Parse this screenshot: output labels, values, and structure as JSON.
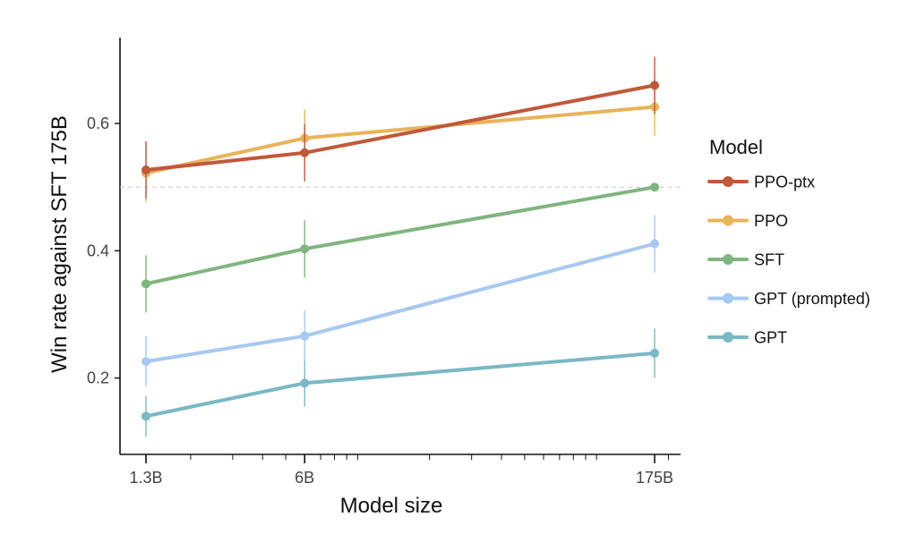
{
  "chart_data": {
    "type": "line",
    "title": "",
    "xlabel": "Model size",
    "ylabel": "Win rate against SFT 175B",
    "x_scale": "log",
    "x_param_billions": [
      1.3,
      6,
      175
    ],
    "categories": [
      "1.3B",
      "6B",
      "175B"
    ],
    "ylim": [
      0.08,
      0.735
    ],
    "yticks": [
      0.2,
      0.4,
      0.6
    ],
    "ytick_labels": [
      "0.2",
      "0.4",
      "0.6"
    ],
    "reference_line": 0.5,
    "grid": false,
    "legend": {
      "title": "Model",
      "position": "right"
    },
    "series": [
      {
        "name": "PPO-ptx",
        "color": "#c0583a",
        "values": [
          0.527,
          0.554,
          0.66
        ],
        "err_low": [
          0.482,
          0.509,
          0.615
        ],
        "err_high": [
          0.572,
          0.599,
          0.705
        ]
      },
      {
        "name": "PPO",
        "color": "#e9b35a",
        "values": [
          0.522,
          0.577,
          0.626
        ],
        "err_low": [
          0.477,
          0.532,
          0.581
        ],
        "err_high": [
          0.567,
          0.622,
          0.671
        ]
      },
      {
        "name": "SFT",
        "color": "#7fb57f",
        "values": [
          0.348,
          0.403,
          0.5
        ],
        "err_low": [
          0.303,
          0.358,
          0.5
        ],
        "err_high": [
          0.393,
          0.448,
          0.5
        ]
      },
      {
        "name": "GPT (prompted)",
        "color": "#a6c8f2",
        "values": [
          0.226,
          0.266,
          0.411
        ],
        "err_low": [
          0.186,
          0.226,
          0.366
        ],
        "err_high": [
          0.266,
          0.306,
          0.456
        ]
      },
      {
        "name": "GPT",
        "color": "#7ab8c4",
        "values": [
          0.14,
          0.192,
          0.239
        ],
        "err_low": [
          0.108,
          0.155,
          0.2
        ],
        "err_high": [
          0.172,
          0.229,
          0.278
        ]
      }
    ]
  }
}
